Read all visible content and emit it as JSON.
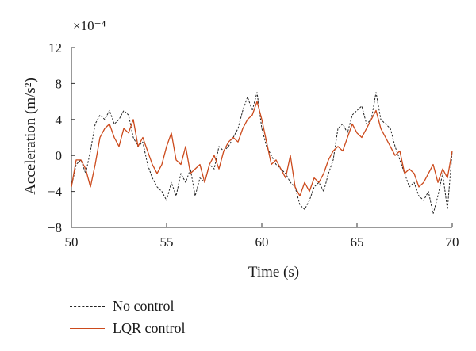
{
  "chart_data": {
    "type": "line",
    "xlabel": "Time (s)",
    "ylabel": "Acceleration (m/s²)",
    "yscale_label": "×10⁻⁴",
    "xlim": [
      50,
      70
    ],
    "ylim": [
      -8,
      12
    ],
    "xticks": [
      50,
      55,
      60,
      65,
      70
    ],
    "yticks": [
      -8,
      -4,
      0,
      4,
      8,
      12
    ],
    "ytick_labels": [
      "−8",
      "−4",
      "0",
      "4",
      "8",
      "12"
    ],
    "legend_placement": "bottom-left, outside plot",
    "series": [
      {
        "name": "No control",
        "style": "dashed",
        "color": "#222222",
        "x": [
          50.0,
          50.25,
          50.5,
          50.75,
          51.0,
          51.25,
          51.5,
          51.75,
          52.0,
          52.25,
          52.5,
          52.75,
          53.0,
          53.25,
          53.5,
          53.75,
          54.0,
          54.25,
          54.5,
          54.75,
          55.0,
          55.25,
          55.5,
          55.75,
          56.0,
          56.25,
          56.5,
          56.75,
          57.0,
          57.25,
          57.5,
          57.75,
          58.0,
          58.25,
          58.5,
          58.75,
          59.0,
          59.25,
          59.5,
          59.75,
          60.0,
          60.25,
          60.5,
          60.75,
          61.0,
          61.25,
          61.5,
          61.75,
          62.0,
          62.25,
          62.5,
          62.75,
          63.0,
          63.25,
          63.5,
          63.75,
          64.0,
          64.25,
          64.5,
          64.75,
          65.0,
          65.25,
          65.5,
          65.75,
          66.0,
          66.25,
          66.5,
          66.75,
          67.0,
          67.25,
          67.5,
          67.75,
          68.0,
          68.25,
          68.5,
          68.75,
          69.0,
          69.25,
          69.5,
          69.75,
          70.0
        ],
        "y": [
          -3.5,
          -1.0,
          -0.5,
          -2.0,
          0.5,
          3.5,
          4.5,
          4.0,
          5.0,
          3.5,
          4.0,
          5.0,
          4.5,
          2.0,
          1.0,
          1.5,
          -1.0,
          -2.5,
          -3.5,
          -4.0,
          -5.0,
          -3.0,
          -4.5,
          -2.0,
          -3.0,
          -1.5,
          -4.5,
          -2.5,
          -3.0,
          -1.0,
          -1.5,
          1.0,
          0.5,
          1.0,
          2.0,
          3.0,
          5.0,
          6.5,
          5.0,
          7.0,
          3.0,
          1.0,
          0.0,
          -1.0,
          -1.5,
          -2.0,
          -3.0,
          -3.5,
          -5.5,
          -6.0,
          -5.0,
          -3.5,
          -3.0,
          -4.0,
          -2.0,
          -0.5,
          3.0,
          3.5,
          2.5,
          4.5,
          5.0,
          5.5,
          3.5,
          4.0,
          7.0,
          4.0,
          3.5,
          3.0,
          1.0,
          -0.5,
          -2.0,
          -3.5,
          -3.0,
          -4.5,
          -5.0,
          -4.0,
          -6.5,
          -4.5,
          -2.0,
          -6.0,
          0.5
        ]
      },
      {
        "name": "LQR control",
        "style": "solid",
        "color": "#cc4a1c",
        "x": [
          50.0,
          50.25,
          50.5,
          50.75,
          51.0,
          51.25,
          51.5,
          51.75,
          52.0,
          52.25,
          52.5,
          52.75,
          53.0,
          53.25,
          53.5,
          53.75,
          54.0,
          54.25,
          54.5,
          54.75,
          55.0,
          55.25,
          55.5,
          55.75,
          56.0,
          56.25,
          56.5,
          56.75,
          57.0,
          57.25,
          57.5,
          57.75,
          58.0,
          58.25,
          58.5,
          58.75,
          59.0,
          59.25,
          59.5,
          59.75,
          60.0,
          60.25,
          60.5,
          60.75,
          61.0,
          61.25,
          61.5,
          61.75,
          62.0,
          62.25,
          62.5,
          62.75,
          63.0,
          63.25,
          63.5,
          63.75,
          64.0,
          64.25,
          64.5,
          64.75,
          65.0,
          65.25,
          65.5,
          65.75,
          66.0,
          66.25,
          66.5,
          66.75,
          67.0,
          67.25,
          67.5,
          67.75,
          68.0,
          68.25,
          68.5,
          68.75,
          69.0,
          69.25,
          69.5,
          69.75,
          70.0
        ],
        "y": [
          -3.5,
          -0.5,
          -0.5,
          -1.5,
          -3.5,
          -1.0,
          2.0,
          3.0,
          3.5,
          2.0,
          1.0,
          3.0,
          2.5,
          4.0,
          1.0,
          2.0,
          0.5,
          -1.0,
          -2.0,
          -1.0,
          1.0,
          2.5,
          -0.5,
          -1.0,
          1.0,
          -2.0,
          -1.5,
          -1.0,
          -3.0,
          -1.0,
          0.0,
          -1.5,
          0.5,
          1.5,
          2.0,
          1.5,
          3.0,
          4.0,
          4.5,
          6.0,
          4.0,
          1.5,
          -1.0,
          -0.5,
          -1.5,
          -2.5,
          0.0,
          -3.5,
          -4.5,
          -3.0,
          -4.0,
          -2.5,
          -3.0,
          -2.0,
          -0.5,
          0.5,
          1.0,
          0.5,
          2.0,
          3.5,
          2.5,
          2.0,
          3.0,
          4.0,
          5.0,
          3.0,
          2.0,
          1.0,
          0.0,
          0.5,
          -2.0,
          -1.5,
          -2.0,
          -3.5,
          -3.0,
          -2.0,
          -1.0,
          -3.0,
          -1.5,
          -2.5,
          0.5
        ]
      }
    ]
  }
}
